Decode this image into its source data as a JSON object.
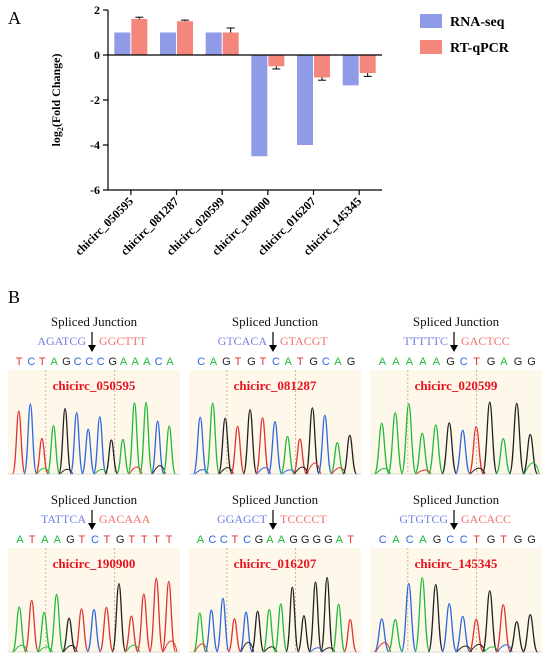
{
  "panel_a": {
    "letter": "A"
  },
  "panel_b": {
    "letter": "B"
  },
  "colors": {
    "rna_seq": "#8f9be6",
    "rt_qpcr": "#f4867b",
    "left_seq": "#6f7fe6",
    "right_seq": "#f2706a",
    "sample_name": "#e8121f",
    "A": "#1fba3a",
    "C": "#2f66e0",
    "G": "#222222",
    "T": "#e23232",
    "chrom_bg": "#fdf8ea"
  },
  "chart_data": {
    "type": "bar",
    "categories": [
      "chicirc_050595",
      "chicirc_081287",
      "chicirc_020599",
      "chicirc_190900",
      "chicirc_016207",
      "chicirc_145345"
    ],
    "series": [
      {
        "name": "RNA-seq",
        "values": [
          1.0,
          1.0,
          1.0,
          -4.5,
          -4.0,
          -1.35
        ]
      },
      {
        "name": "RT-qPCR",
        "values": [
          1.6,
          1.5,
          1.0,
          -0.5,
          -1.0,
          -0.8
        ],
        "errors": [
          0.08,
          0.05,
          0.2,
          0.12,
          0.12,
          0.15
        ]
      }
    ],
    "ylabel_main": "log",
    "ylabel_sub": "2",
    "ylabel_rest": "(Fold Change)",
    "ylim": [
      -6,
      2
    ],
    "yticks": [
      2,
      0,
      -2,
      -4,
      -6
    ],
    "legend": "top-right",
    "grid": false
  },
  "junction_panels": [
    {
      "title": "Spliced Junction",
      "left": "AGATCG",
      "right": "GGCTTT",
      "bases": "TCTAGCCCGAAACA",
      "sample": "chicirc_050595"
    },
    {
      "title": "Spliced Junction",
      "left": "GTCACA",
      "right": "GTACGT",
      "bases": "CAGTGTCATGCAG",
      "sample": "chicirc_081287"
    },
    {
      "title": "Spliced Junction",
      "left": "TTTTTC",
      "right": "GACTCC",
      "bases": "AAAAAGCTGAGG",
      "sample": "chicirc_020599"
    },
    {
      "title": "Spliced Junction",
      "left": "TATTCA",
      "right": "GACAAA",
      "bases": "ATAAGTCTGTTTT",
      "sample": "chicirc_190900"
    },
    {
      "title": "Spliced Junction",
      "left": "GGAGCT",
      "right": "TCCCCT",
      "bases": "ACCTCGAAGGGGAT",
      "sample": "chicirc_016207"
    },
    {
      "title": "Spliced Junction",
      "left": "GTGTCG",
      "right": "GACACC",
      "bases": "CACAGCCTGTGG",
      "sample": "chicirc_145345"
    }
  ]
}
